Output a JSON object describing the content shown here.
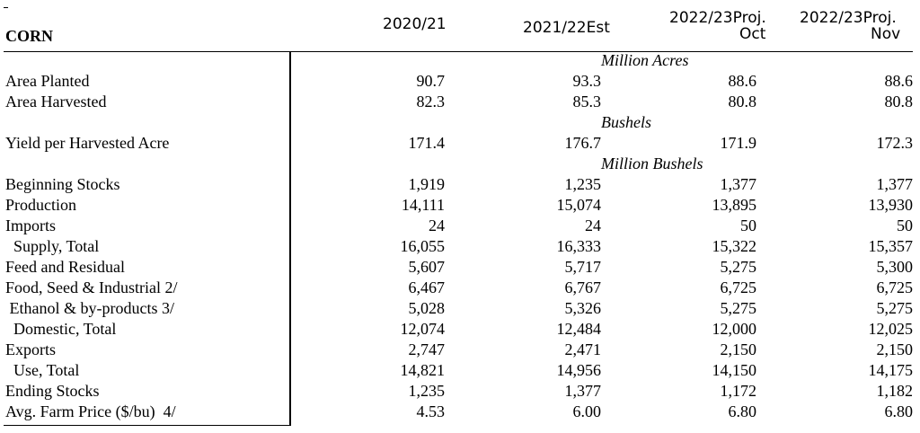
{
  "title": "CORN",
  "columns": [
    "2020/21",
    "2021/22Est",
    "2022/23Proj. Oct",
    "2022/23Proj. Nov"
  ],
  "header_col3_line1": "2022/23Proj.",
  "header_col3_line2": "Oct",
  "header_col4_line1": "2022/23Proj.",
  "header_col4_line2": "Nov",
  "units": {
    "million_acres": "Million Acres",
    "bushels": "Bushels",
    "million_bushels": "Million Bushels"
  },
  "rows": [
    {
      "label": "Area Planted",
      "values": [
        "90.7",
        "93.3",
        "88.6",
        "88.6"
      ]
    },
    {
      "label": "Area Harvested",
      "values": [
        "82.3",
        "85.3",
        "80.8",
        "80.8"
      ]
    },
    {
      "label": "Yield per Harvested Acre",
      "values": [
        "171.4",
        "176.7",
        "171.9",
        "172.3"
      ]
    },
    {
      "label": "Beginning Stocks",
      "values": [
        "1,919",
        "1,235",
        "1,377",
        "1,377"
      ]
    },
    {
      "label": "Production",
      "values": [
        "14,111",
        "15,074",
        "13,895",
        "13,930"
      ]
    },
    {
      "label": "Imports",
      "values": [
        "24",
        "24",
        "50",
        "50"
      ]
    },
    {
      "label": "  Supply, Total",
      "values": [
        "16,055",
        "16,333",
        "15,322",
        "15,357"
      ]
    },
    {
      "label": "Feed and Residual",
      "values": [
        "5,607",
        "5,717",
        "5,275",
        "5,300"
      ]
    },
    {
      "label": "Food, Seed & Industrial 2/",
      "values": [
        "6,467",
        "6,767",
        "6,725",
        "6,725"
      ]
    },
    {
      "label": " Ethanol & by-products 3/",
      "values": [
        "5,028",
        "5,326",
        "5,275",
        "5,275"
      ]
    },
    {
      "label": "  Domestic, Total",
      "values": [
        "12,074",
        "12,484",
        "12,000",
        "12,025"
      ]
    },
    {
      "label": "Exports",
      "values": [
        "2,747",
        "2,471",
        "2,150",
        "2,150"
      ]
    },
    {
      "label": "  Use, Total",
      "values": [
        "14,821",
        "14,956",
        "14,150",
        "14,175"
      ]
    },
    {
      "label": "Ending Stocks",
      "values": [
        "1,235",
        "1,377",
        "1,172",
        "1,182"
      ]
    },
    {
      "label": "Avg. Farm Price ($/bu)  4/",
      "values": [
        "4.53",
        "6.00",
        "6.80",
        "6.80"
      ]
    }
  ]
}
